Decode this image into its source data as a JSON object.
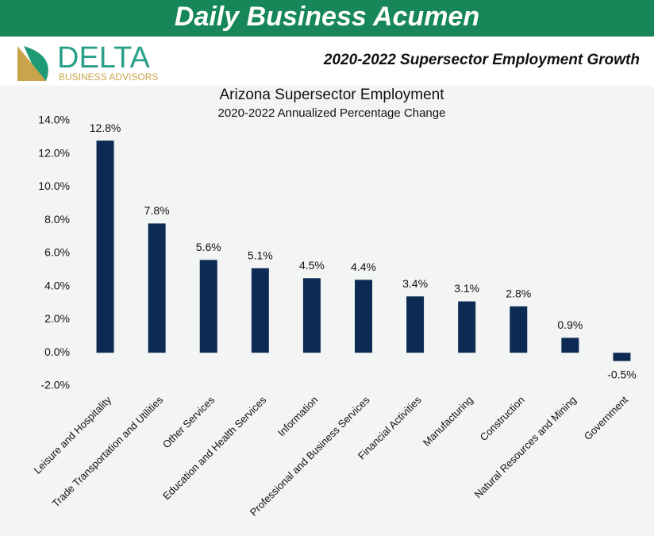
{
  "header": {
    "title": "Daily Business Acumen",
    "logo_name": "DELTA",
    "logo_tagline": "BUSINESS ADVISORS",
    "subtitle": "2020-2022 Supersector Employment Growth"
  },
  "chart_data": {
    "type": "bar",
    "title": "Arizona Supersector Employment",
    "subtitle": "2020-2022 Annualized Percentage Change",
    "categories": [
      "Leisure and Hospitality",
      "Trade Transportation and Utilities",
      "Other Services",
      "Education and Health Services",
      "Information",
      "Professional and Business Services",
      "Financial Activities",
      "Manufacturing",
      "Construction",
      "Natural Resources and Mining",
      "Government"
    ],
    "values": [
      12.8,
      7.8,
      5.6,
      5.1,
      4.5,
      4.4,
      3.4,
      3.1,
      2.8,
      0.9,
      -0.5
    ],
    "value_labels": [
      "12.8%",
      "7.8%",
      "5.6%",
      "5.1%",
      "4.5%",
      "4.4%",
      "3.4%",
      "3.1%",
      "2.8%",
      "0.9%",
      "-0.5%"
    ],
    "color": "#0d2a55",
    "ylim": [
      -2,
      14
    ],
    "yticks": [
      {
        "value": -2,
        "label": "-2.0%"
      },
      {
        "value": 0,
        "label": "0.0%"
      },
      {
        "value": 2,
        "label": "2.0%"
      },
      {
        "value": 4,
        "label": "4.0%"
      },
      {
        "value": 6,
        "label": "6.0%"
      },
      {
        "value": 8,
        "label": "8.0%"
      },
      {
        "value": 10,
        "label": "10.0%"
      },
      {
        "value": 12,
        "label": "12.0%"
      },
      {
        "value": 14,
        "label": "14.0%"
      }
    ],
    "grid": false
  }
}
